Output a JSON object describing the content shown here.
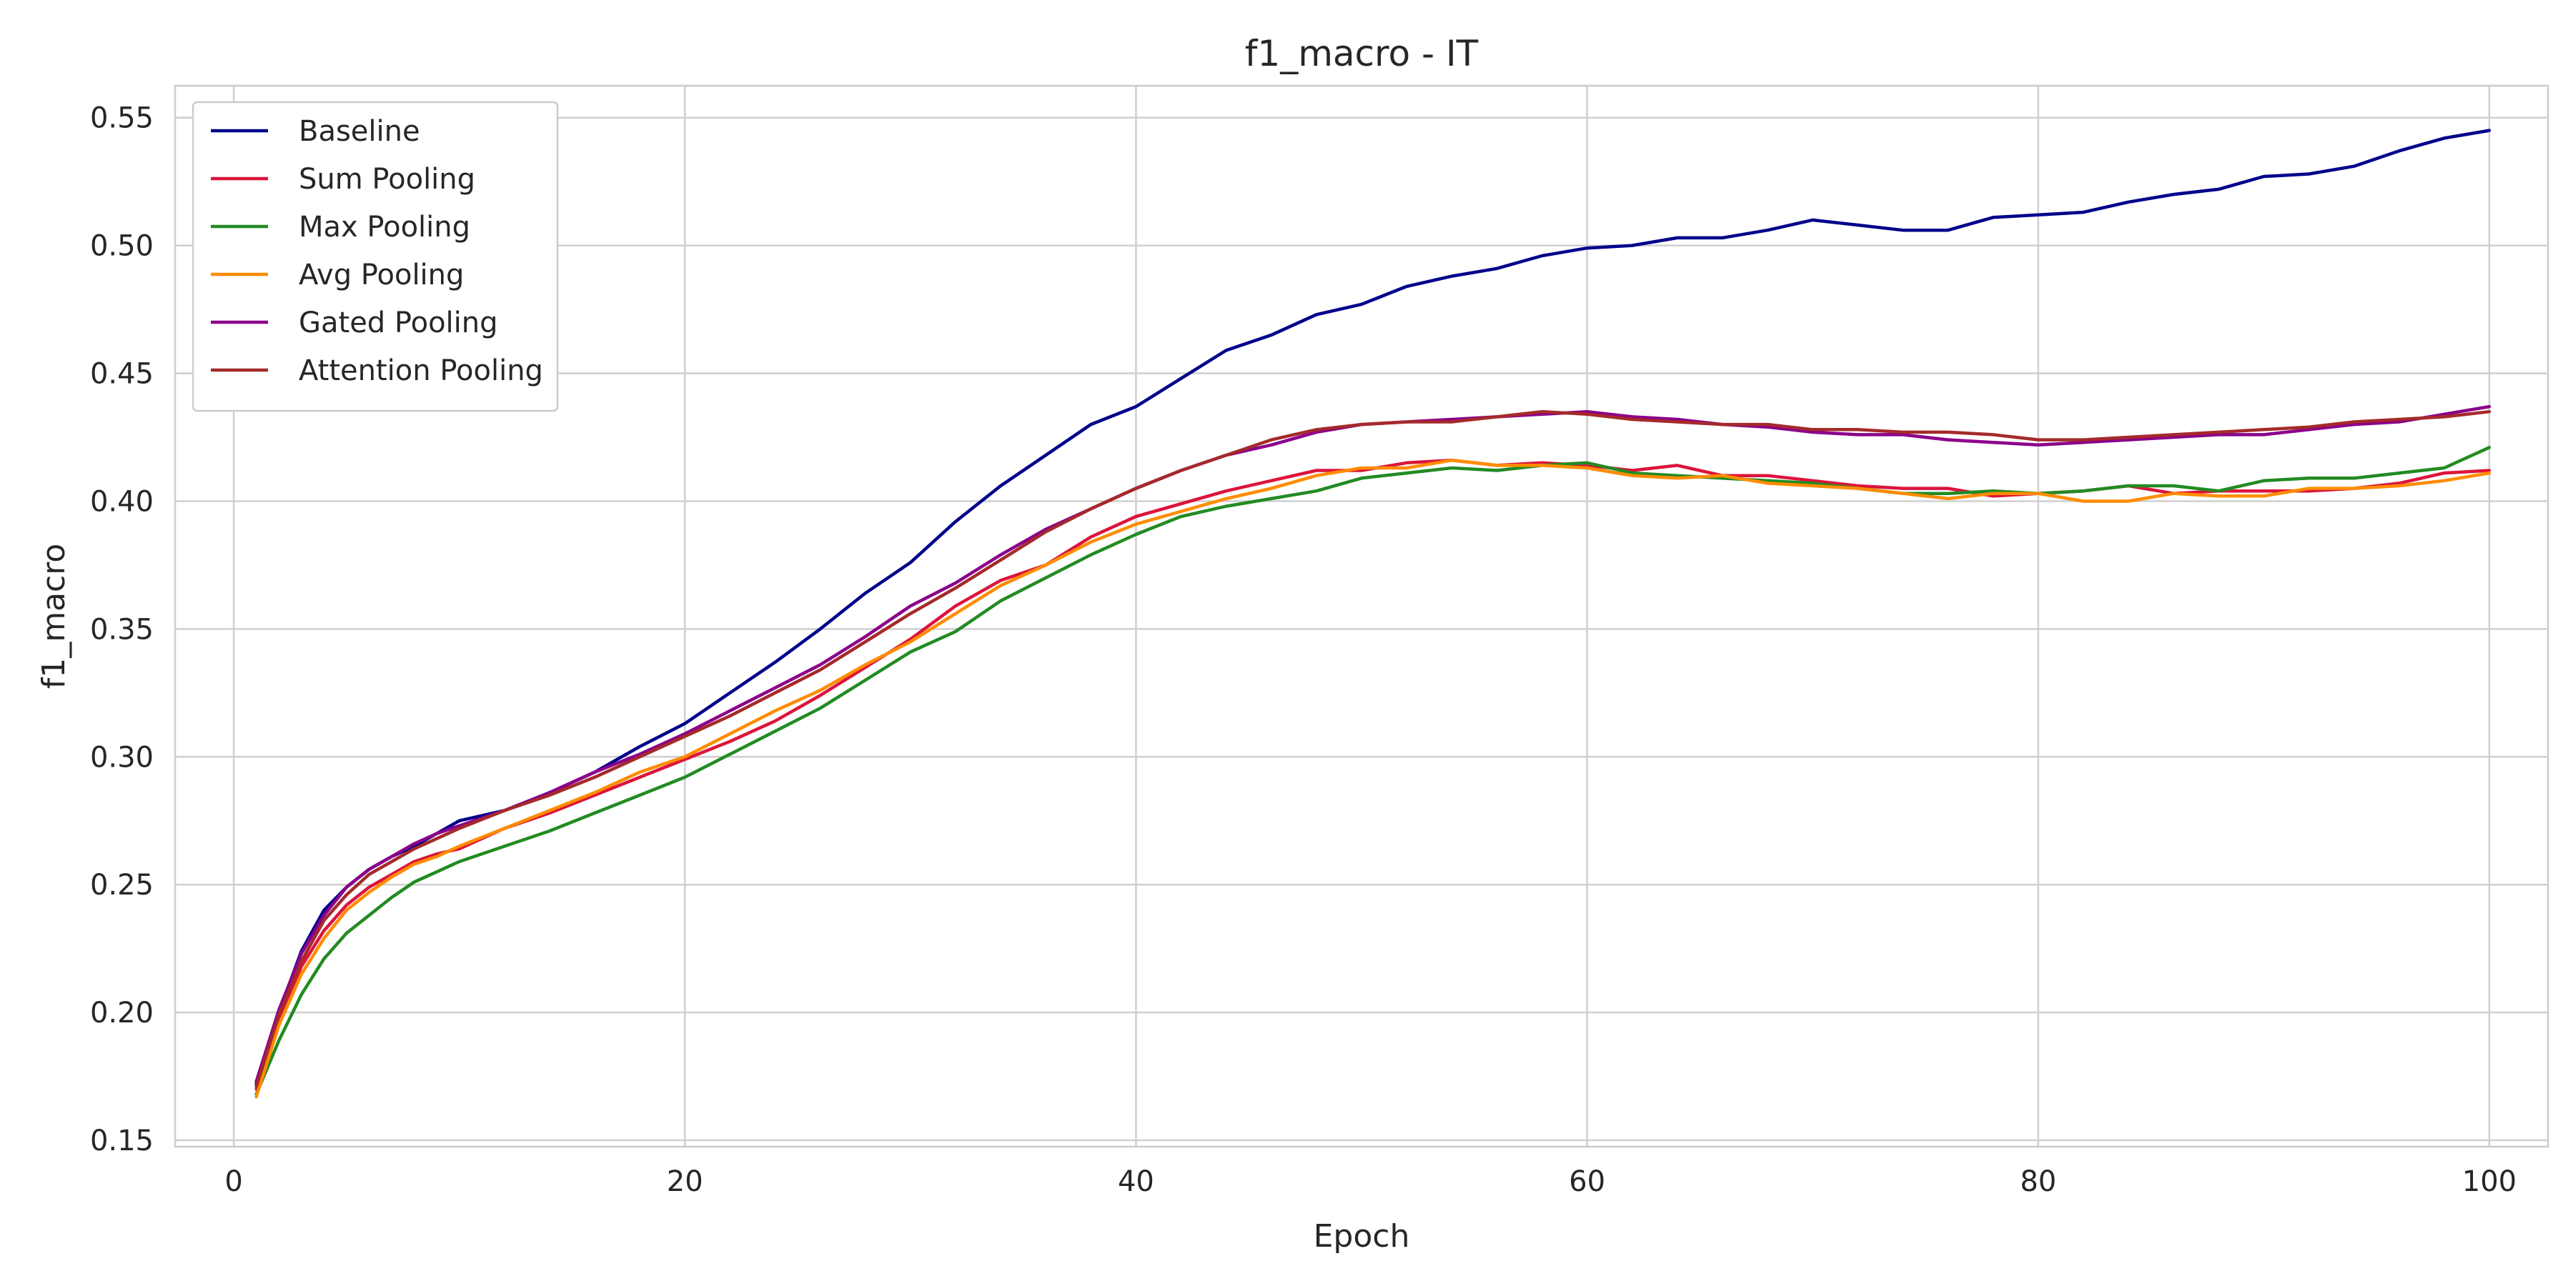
{
  "chart_data": {
    "type": "line",
    "title": "f1_macro - IT",
    "xlabel": "Epoch",
    "ylabel": "f1_macro",
    "xlim": [
      -2.6,
      102.6
    ],
    "ylim": [
      0.1475,
      0.5625
    ],
    "xticks": [
      0,
      20,
      40,
      60,
      80,
      100
    ],
    "yticks": [
      0.15,
      0.2,
      0.25,
      0.3,
      0.35,
      0.4,
      0.45,
      0.5,
      0.55
    ],
    "ytick_labels": [
      "0.15",
      "0.20",
      "0.25",
      "0.30",
      "0.35",
      "0.40",
      "0.45",
      "0.50",
      "0.55"
    ],
    "grid": true,
    "legend_position": "top-left",
    "series": [
      {
        "name": "Baseline",
        "color": "#00008b",
        "x": [
          1,
          2,
          3,
          4,
          5,
          6,
          7,
          8,
          9,
          10,
          12,
          14,
          16,
          18,
          20,
          22,
          24,
          26,
          28,
          30,
          32,
          34,
          36,
          38,
          40,
          42,
          44,
          46,
          48,
          50,
          52,
          54,
          56,
          58,
          60,
          62,
          64,
          66,
          68,
          70,
          72,
          74,
          76,
          78,
          80,
          82,
          84,
          86,
          88,
          90,
          92,
          94,
          96,
          98,
          100
        ],
        "y": [
          0.172,
          0.2,
          0.224,
          0.24,
          0.249,
          0.256,
          0.261,
          0.265,
          0.27,
          0.275,
          0.279,
          0.286,
          0.294,
          0.304,
          0.313,
          0.325,
          0.337,
          0.35,
          0.364,
          0.376,
          0.392,
          0.406,
          0.418,
          0.43,
          0.437,
          0.448,
          0.459,
          0.465,
          0.473,
          0.477,
          0.484,
          0.488,
          0.491,
          0.496,
          0.499,
          0.5,
          0.503,
          0.503,
          0.506,
          0.51,
          0.508,
          0.506,
          0.506,
          0.511,
          0.512,
          0.513,
          0.517,
          0.52,
          0.522,
          0.527,
          0.528,
          0.531,
          0.537,
          0.542,
          0.545
        ]
      },
      {
        "name": "Sum Pooling",
        "color": "#dc143c",
        "x": [
          1,
          2,
          3,
          4,
          5,
          6,
          7,
          8,
          9,
          10,
          12,
          14,
          16,
          18,
          20,
          22,
          24,
          26,
          28,
          30,
          32,
          34,
          36,
          38,
          40,
          42,
          44,
          46,
          48,
          50,
          52,
          54,
          56,
          58,
          60,
          62,
          64,
          66,
          68,
          70,
          72,
          74,
          76,
          78,
          80,
          82,
          84,
          86,
          88,
          90,
          92,
          94,
          96,
          98,
          100
        ],
        "y": [
          0.17,
          0.197,
          0.218,
          0.232,
          0.242,
          0.249,
          0.254,
          0.259,
          0.262,
          0.264,
          0.272,
          0.278,
          0.285,
          0.292,
          0.299,
          0.306,
          0.314,
          0.324,
          0.335,
          0.346,
          0.359,
          0.369,
          0.375,
          0.386,
          0.394,
          0.399,
          0.404,
          0.408,
          0.412,
          0.412,
          0.415,
          0.416,
          0.414,
          0.415,
          0.414,
          0.412,
          0.414,
          0.41,
          0.41,
          0.408,
          0.406,
          0.405,
          0.405,
          0.402,
          0.403,
          0.404,
          0.406,
          0.403,
          0.404,
          0.404,
          0.404,
          0.405,
          0.407,
          0.411,
          0.412
        ]
      },
      {
        "name": "Max Pooling",
        "color": "#228b22",
        "x": [
          1,
          2,
          3,
          4,
          5,
          6,
          7,
          8,
          9,
          10,
          12,
          14,
          16,
          18,
          20,
          22,
          24,
          26,
          28,
          30,
          32,
          34,
          36,
          38,
          40,
          42,
          44,
          46,
          48,
          50,
          52,
          54,
          56,
          58,
          60,
          62,
          64,
          66,
          68,
          70,
          72,
          74,
          76,
          78,
          80,
          82,
          84,
          86,
          88,
          90,
          92,
          94,
          96,
          98,
          100
        ],
        "y": [
          0.168,
          0.189,
          0.207,
          0.221,
          0.231,
          0.238,
          0.245,
          0.251,
          0.255,
          0.259,
          0.265,
          0.271,
          0.278,
          0.285,
          0.292,
          0.301,
          0.31,
          0.319,
          0.33,
          0.341,
          0.349,
          0.361,
          0.37,
          0.379,
          0.387,
          0.394,
          0.398,
          0.401,
          0.404,
          0.409,
          0.411,
          0.413,
          0.412,
          0.414,
          0.415,
          0.411,
          0.41,
          0.409,
          0.408,
          0.407,
          0.405,
          0.403,
          0.403,
          0.404,
          0.403,
          0.404,
          0.406,
          0.406,
          0.404,
          0.408,
          0.409,
          0.409,
          0.411,
          0.413,
          0.421
        ]
      },
      {
        "name": "Avg Pooling",
        "color": "#ff8c00",
        "x": [
          1,
          2,
          3,
          4,
          5,
          6,
          7,
          8,
          9,
          10,
          12,
          14,
          16,
          18,
          20,
          22,
          24,
          26,
          28,
          30,
          32,
          34,
          36,
          38,
          40,
          42,
          44,
          46,
          48,
          50,
          52,
          54,
          56,
          58,
          60,
          62,
          64,
          66,
          68,
          70,
          72,
          74,
          76,
          78,
          80,
          82,
          84,
          86,
          88,
          90,
          92,
          94,
          96,
          98,
          100
        ],
        "y": [
          0.167,
          0.195,
          0.215,
          0.229,
          0.24,
          0.247,
          0.253,
          0.258,
          0.261,
          0.265,
          0.272,
          0.279,
          0.286,
          0.294,
          0.3,
          0.309,
          0.318,
          0.326,
          0.336,
          0.345,
          0.356,
          0.367,
          0.375,
          0.384,
          0.391,
          0.396,
          0.401,
          0.405,
          0.41,
          0.413,
          0.413,
          0.416,
          0.414,
          0.414,
          0.413,
          0.41,
          0.409,
          0.41,
          0.407,
          0.406,
          0.405,
          0.403,
          0.401,
          0.403,
          0.403,
          0.4,
          0.4,
          0.403,
          0.402,
          0.402,
          0.405,
          0.405,
          0.406,
          0.408,
          0.411
        ]
      },
      {
        "name": "Gated Pooling",
        "color": "#8b008b",
        "x": [
          1,
          2,
          3,
          4,
          5,
          6,
          7,
          8,
          9,
          10,
          12,
          14,
          16,
          18,
          20,
          22,
          24,
          26,
          28,
          30,
          32,
          34,
          36,
          38,
          40,
          42,
          44,
          46,
          48,
          50,
          52,
          54,
          56,
          58,
          60,
          62,
          64,
          66,
          68,
          70,
          72,
          74,
          76,
          78,
          80,
          82,
          84,
          86,
          88,
          90,
          92,
          94,
          96,
          98,
          100
        ],
        "y": [
          0.173,
          0.201,
          0.223,
          0.238,
          0.249,
          0.256,
          0.261,
          0.266,
          0.27,
          0.273,
          0.279,
          0.286,
          0.294,
          0.301,
          0.309,
          0.318,
          0.327,
          0.336,
          0.347,
          0.359,
          0.368,
          0.379,
          0.389,
          0.397,
          0.405,
          0.412,
          0.418,
          0.422,
          0.427,
          0.43,
          0.431,
          0.432,
          0.433,
          0.434,
          0.435,
          0.433,
          0.432,
          0.43,
          0.429,
          0.427,
          0.426,
          0.426,
          0.424,
          0.423,
          0.422,
          0.423,
          0.424,
          0.425,
          0.426,
          0.426,
          0.428,
          0.43,
          0.431,
          0.434,
          0.437
        ]
      },
      {
        "name": "Attention Pooling",
        "color": "#a52a2a",
        "x": [
          1,
          2,
          3,
          4,
          5,
          6,
          7,
          8,
          9,
          10,
          12,
          14,
          16,
          18,
          20,
          22,
          24,
          26,
          28,
          30,
          32,
          34,
          36,
          38,
          40,
          42,
          44,
          46,
          48,
          50,
          52,
          54,
          56,
          58,
          60,
          62,
          64,
          66,
          68,
          70,
          72,
          74,
          76,
          78,
          80,
          82,
          84,
          86,
          88,
          90,
          92,
          94,
          96,
          98,
          100
        ],
        "y": [
          0.171,
          0.199,
          0.22,
          0.236,
          0.246,
          0.254,
          0.259,
          0.264,
          0.268,
          0.272,
          0.279,
          0.285,
          0.292,
          0.3,
          0.308,
          0.316,
          0.325,
          0.334,
          0.345,
          0.356,
          0.366,
          0.377,
          0.388,
          0.397,
          0.405,
          0.412,
          0.418,
          0.424,
          0.428,
          0.43,
          0.431,
          0.431,
          0.433,
          0.435,
          0.434,
          0.432,
          0.431,
          0.43,
          0.43,
          0.428,
          0.428,
          0.427,
          0.427,
          0.426,
          0.424,
          0.424,
          0.425,
          0.426,
          0.427,
          0.428,
          0.429,
          0.431,
          0.432,
          0.433,
          0.435
        ]
      }
    ]
  }
}
